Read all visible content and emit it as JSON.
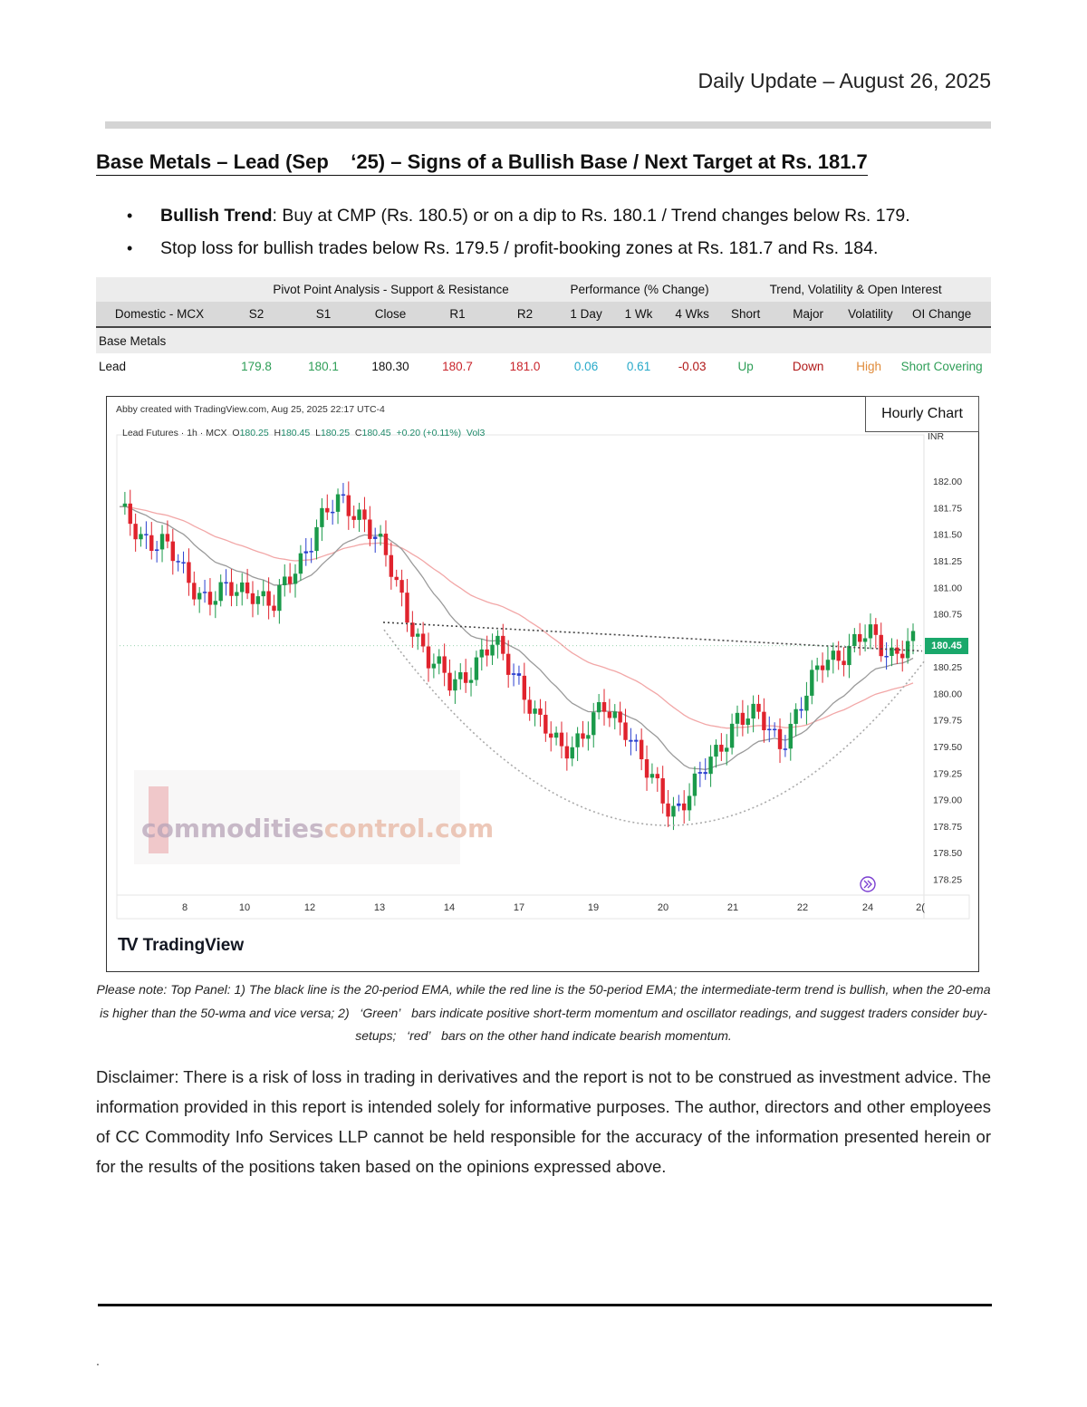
{
  "header": {
    "date_line": "Daily Update – August 26, 2025"
  },
  "headline": "Base Metals – Lead (Sep    ‘25) – Signs of a Bullish Base / Next Target at Rs. 181.7",
  "bullets": [
    {
      "bold": "Bullish Trend",
      "text": ": Buy at CMP (Rs. 180.5) or on a dip to Rs. 180.1 / Trend changes below Rs. 179."
    },
    {
      "bold": "",
      "text": "Stop loss for bullish trades below Rs. 179.5 / profit-booking zones at Rs. 181.7 and Rs. 184."
    }
  ],
  "table": {
    "group_headers": [
      "Pivot Point Analysis - Support & Resistance",
      "Performance (% Change)",
      "Trend, Volatility & Open Interest"
    ],
    "columns": [
      "Domestic - MCX",
      "S2",
      "S1",
      "Close",
      "R1",
      "R2",
      "1 Day",
      "1 Wk",
      "4 Wks",
      "Short",
      "Major",
      "Volatility",
      "OI Change"
    ],
    "section": "Base Metals",
    "row": [
      "Lead",
      "179.8",
      "180.1",
      "180.30",
      "180.7",
      "181.0",
      "0.06",
      "0.61",
      "-0.03",
      "Up",
      "Down",
      "High",
      "Short Covering"
    ],
    "colors": {
      "support": "#2e9e57",
      "resistance": "#c9242b",
      "performance_pos": "#27a9c9",
      "performance_neg": "#b01818",
      "trend_up": "#2e9e57",
      "trend_down": "#b01818",
      "volatility": "#e08b3a",
      "oi": "#2e9e57"
    }
  },
  "chart": {
    "box_label": "Hourly Chart",
    "credit": "Abby created with TradingView.com, Aug 25, 2025 22:17 UTC-4",
    "ohlc": {
      "prefix": "Lead Futures · 1h · MCX",
      "o_lbl": "O",
      "o": "180.25",
      "h_lbl": "H",
      "h": "180.45",
      "l_lbl": "L",
      "l": "180.25",
      "c_lbl": "C",
      "c": "180.45",
      "chg": "+0.20 (+0.11%)",
      "vol": "Vol3"
    },
    "currency": "INR",
    "last_price": "180.45",
    "logo_text": "TradingView",
    "watermark": {
      "part1": "commodities",
      "part2": "control.com"
    },
    "y_ticks": [
      "182.00",
      "181.75",
      "181.50",
      "181.25",
      "181.00",
      "180.75",
      "180.25",
      "180.00",
      "179.75",
      "179.50",
      "179.25",
      "179.00",
      "178.75",
      "178.50",
      "178.25"
    ],
    "x_ticks": [
      "8",
      "10",
      "12",
      "13",
      "14",
      "17",
      "19",
      "20",
      "21",
      "22",
      "24",
      "2("
    ],
    "colors": {
      "up": "#1a9a4a",
      "down": "#e0232d",
      "doji": "#2a3fcf",
      "ema20": "#9a9a9a",
      "ema50": "#f2a7a7"
    }
  },
  "chart_data": {
    "type": "candlestick",
    "title": "Lead Futures · 1h · MCX",
    "y_unit": "INR",
    "ylim": [
      178.1,
      182.3
    ],
    "closes_sample": [
      181.7,
      181.5,
      181.4,
      181.1,
      180.9,
      180.95,
      181.0,
      180.8,
      181.2,
      181.6,
      181.8,
      181.7,
      181.3,
      180.8,
      180.3,
      180.1,
      180.25,
      180.45,
      180.2,
      179.7,
      179.5,
      179.6,
      179.85,
      179.7,
      179.2,
      178.9,
      179.1,
      179.4,
      179.8,
      179.75,
      179.55,
      179.9,
      180.35,
      180.4,
      180.55,
      180.4,
      180.45
    ],
    "trendline": "neckline from ~180.65 (13th) to ~180.40 (24th)",
    "pattern": "rounding bottom",
    "last": 180.45
  },
  "note": "Please note: Top Panel: 1) The black line is the 20-period EMA, while the red line is the 50-period EMA; the intermediate-term trend is bullish, when the 20-ema is higher than the 50-wma and vice versa; 2)   ‘Green’   bars indicate positive short-term momentum and oscillator readings, and suggest traders consider buy-setups;   ‘red’   bars on the other hand indicate bearish momentum.",
  "disclaimer": "Disclaimer: There is a risk of loss in trading in derivatives and the report is not to be construed as investment advice. The information provided in this report is intended solely for informative purposes. The author, directors and other employees of CC Commodity Info Services LLP cannot be held responsible for the accuracy of the information presented herein or for the results of the positions taken based on the opinions expressed above.",
  "footer": {
    "mark": "."
  }
}
